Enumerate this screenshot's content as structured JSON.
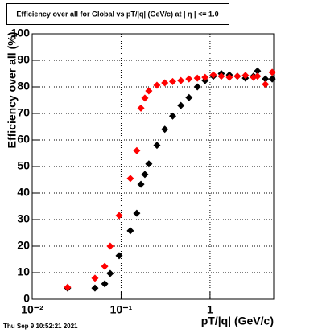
{
  "chart_data": {
    "type": "scatter",
    "title": "Efficiency over all for Global vs pT/|q| (GeV/c) at |  η  | <= 1.0",
    "x_label": "pT/|q| (GeV/c)",
    "y_label": "Efficiency over all (%)",
    "footer": "Thu Sep  9 10:52:21 2021",
    "x_log": true,
    "grid": true,
    "xlim": [
      0.01,
      5.2
    ],
    "ylim": [
      0,
      100
    ],
    "xticks": [
      {
        "value": 0.01,
        "label": "10⁻²"
      },
      {
        "value": 0.1,
        "label": "10⁻¹"
      },
      1
    ],
    "yticks": [
      0,
      10,
      20,
      30,
      40,
      50,
      60,
      70,
      80,
      90,
      100
    ],
    "series": [
      {
        "color": "#000000",
        "x": [
          0.025,
          0.0508,
          0.0654,
          0.0754,
          0.095,
          0.127,
          0.15,
          0.167,
          0.185,
          0.205,
          0.253,
          0.31,
          0.38,
          0.47,
          0.58,
          0.72,
          0.88,
          1.09,
          1.34,
          1.65,
          2.03,
          2.5,
          3.08,
          3.42,
          4.2,
          5.0
        ],
        "values": [
          4.2,
          4.2,
          5.8,
          9.7,
          16.4,
          25.8,
          32.4,
          43.3,
          47,
          51,
          58,
          64,
          69,
          73,
          76,
          80,
          82.4,
          84,
          85,
          84.5,
          84,
          83.3,
          84,
          86,
          83,
          83
        ]
      },
      {
        "color": "#ff0000",
        "x": [
          0.025,
          0.0508,
          0.0654,
          0.0754,
          0.095,
          0.127,
          0.15,
          0.167,
          0.185,
          0.205,
          0.253,
          0.31,
          0.38,
          0.47,
          0.58,
          0.72,
          0.88,
          1.09,
          1.34,
          1.65,
          2.03,
          2.5,
          3.08,
          3.42,
          4.2,
          5.0
        ],
        "values": [
          4.5,
          7.9,
          12.4,
          20,
          31.5,
          45.5,
          56,
          72,
          75.8,
          78.5,
          80.6,
          81.5,
          82,
          82.4,
          83,
          83.3,
          83.6,
          84.5,
          84,
          83.6,
          84,
          84.3,
          83.6,
          84,
          81,
          85.5
        ]
      }
    ]
  }
}
